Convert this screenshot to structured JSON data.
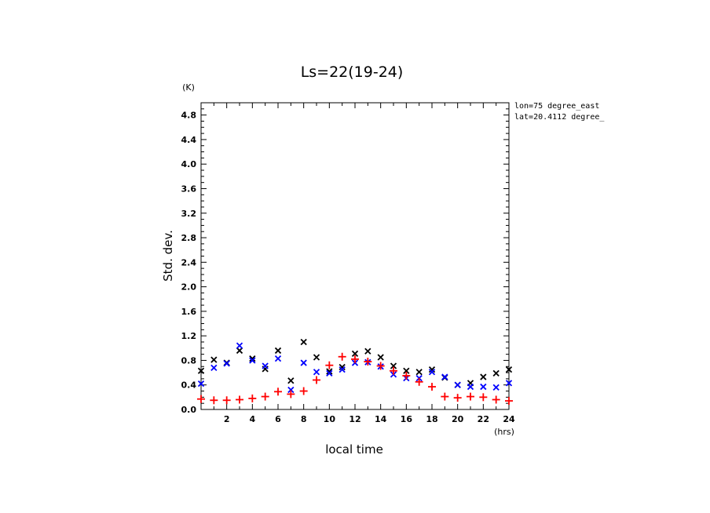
{
  "chart_data": {
    "type": "scatter",
    "title": "Ls=22(19-24)",
    "xlabel": "local time",
    "ylabel": "Std. dev.",
    "x_unit": "(hrs)",
    "y_unit": "(K)",
    "xlim": [
      0,
      24
    ],
    "ylim": [
      0.0,
      5.0
    ],
    "x_ticks": [
      2,
      4,
      6,
      8,
      10,
      12,
      14,
      16,
      18,
      20,
      22,
      24
    ],
    "y_ticks": [
      "0.0",
      "0.4",
      "0.8",
      "1.2",
      "1.6",
      "2.0",
      "2.4",
      "2.8",
      "3.2",
      "3.6",
      "4.0",
      "4.4",
      "4.8"
    ],
    "grid": false,
    "annotations": [
      "lon=75 degree_east",
      "lat=20.4112 degree_"
    ],
    "series": [
      {
        "marker": "x",
        "color": "#000000",
        "x": [
          0,
          1,
          2,
          3,
          4,
          5,
          6,
          7,
          8,
          9,
          10,
          11,
          12,
          13,
          14,
          15,
          16,
          17,
          18,
          19,
          20,
          21,
          22,
          23,
          24
        ],
        "y": [
          0.63,
          0.81,
          0.76,
          0.96,
          0.83,
          0.66,
          0.96,
          0.47,
          1.1,
          0.85,
          0.62,
          0.69,
          0.91,
          0.95,
          0.85,
          0.71,
          0.63,
          0.61,
          0.65,
          0.52,
          0.4,
          0.43,
          0.53,
          0.59,
          0.65
        ]
      },
      {
        "marker": "x",
        "color": "#0000ff",
        "x": [
          0,
          1,
          2,
          3,
          4,
          5,
          6,
          7,
          8,
          9,
          10,
          11,
          12,
          13,
          14,
          15,
          16,
          17,
          18,
          19,
          20,
          21,
          22,
          23,
          24
        ],
        "y": [
          0.42,
          0.68,
          0.75,
          1.04,
          0.8,
          0.71,
          0.83,
          0.32,
          0.76,
          0.61,
          0.59,
          0.65,
          0.76,
          0.77,
          0.7,
          0.57,
          0.51,
          0.51,
          0.61,
          0.53,
          0.4,
          0.37,
          0.37,
          0.36,
          0.43
        ]
      },
      {
        "marker": "+",
        "color": "#ff0000",
        "x": [
          0,
          1,
          2,
          3,
          4,
          5,
          6,
          7,
          8,
          9,
          10,
          11,
          12,
          13,
          14,
          15,
          16,
          17,
          18,
          19,
          20,
          21,
          22,
          23,
          24
        ],
        "y": [
          0.17,
          0.15,
          0.15,
          0.16,
          0.18,
          0.21,
          0.29,
          0.25,
          0.3,
          0.48,
          0.72,
          0.86,
          0.82,
          0.78,
          0.71,
          0.63,
          0.55,
          0.45,
          0.37,
          0.21,
          0.19,
          0.21,
          0.2,
          0.16,
          0.14
        ]
      }
    ]
  }
}
